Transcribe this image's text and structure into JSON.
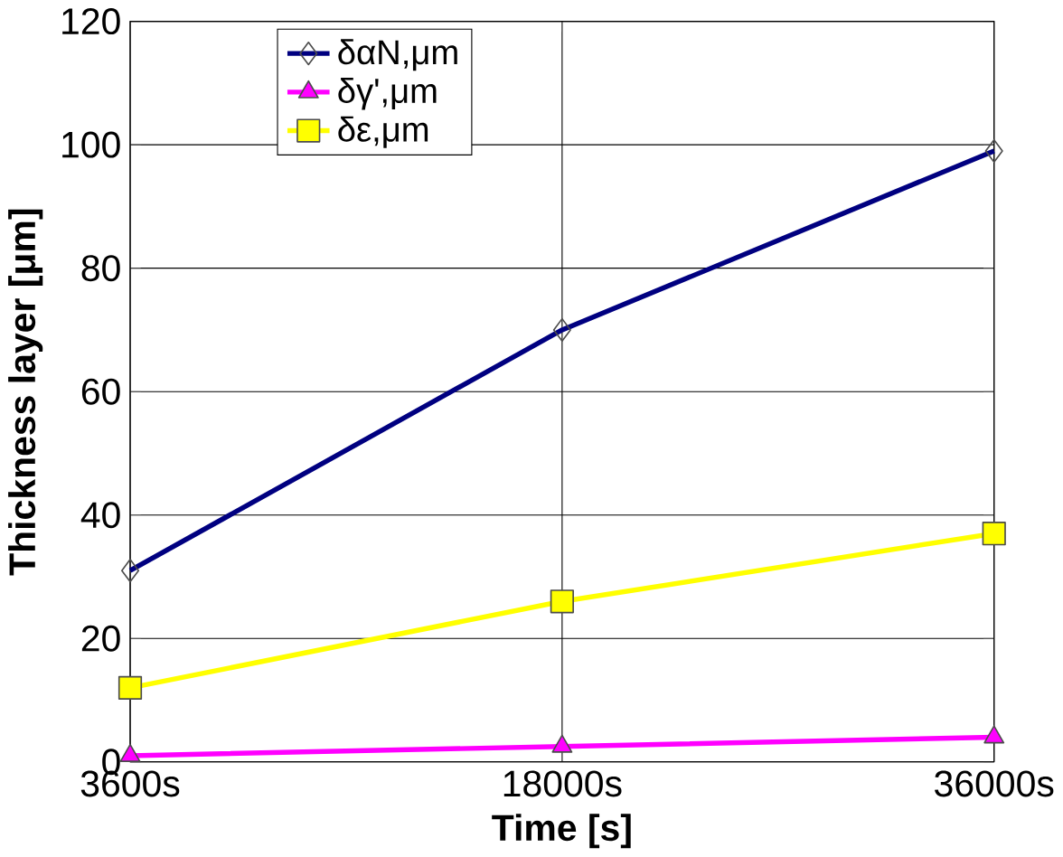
{
  "chart_data": {
    "type": "line",
    "xlabel": "Time [s]",
    "ylabel": "Thickness layer [μm]",
    "categories": [
      "3600s",
      "18000s",
      "36000s"
    ],
    "ylim": [
      0,
      120
    ],
    "yticks": [
      0,
      20,
      40,
      60,
      80,
      100,
      120
    ],
    "grid": true,
    "legend": "top",
    "series": [
      {
        "name": "δαN,μm",
        "color": "#000080",
        "marker": "diamond",
        "values": [
          31,
          70,
          99
        ]
      },
      {
        "name": "δγ',μm",
        "color": "#ff00ff",
        "marker": "triangle",
        "values": [
          1,
          2.5,
          4
        ]
      },
      {
        "name": "δε,μm",
        "color": "#ffff00",
        "marker": "square",
        "values": [
          12,
          26,
          37
        ]
      }
    ]
  }
}
